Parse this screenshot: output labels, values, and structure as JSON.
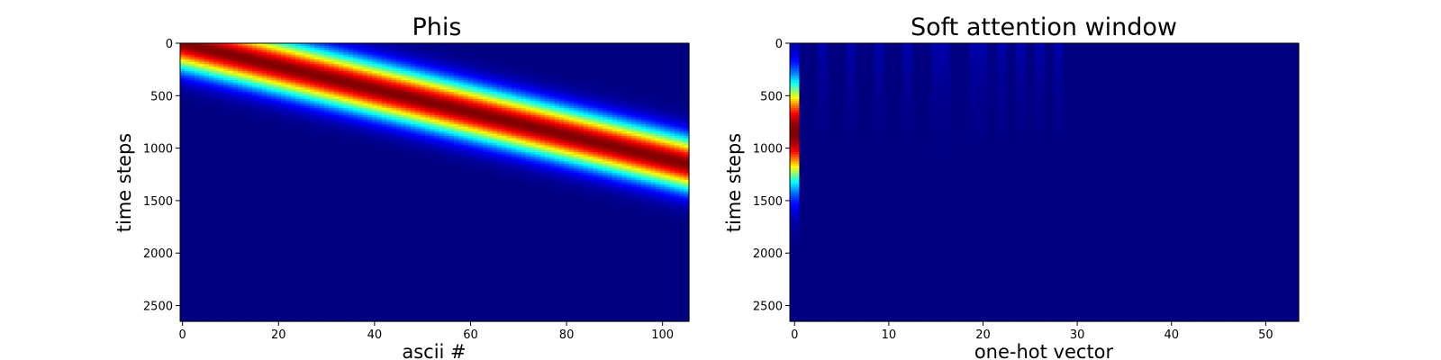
{
  "chart_data": [
    {
      "type": "heatmap",
      "title": "Phis",
      "xlabel": "ascii #",
      "ylabel": "time steps",
      "xlim": [
        -0.5,
        105.5
      ],
      "ylim": [
        2650,
        0
      ],
      "xticks": [
        0,
        20,
        40,
        60,
        80,
        100
      ],
      "yticks": [
        0,
        500,
        1000,
        1500,
        2000,
        2500
      ],
      "colormap": "jet",
      "num_columns": 106,
      "band": {
        "center_start": 0,
        "center_end": 1150,
        "sigma": 170
      },
      "grid": false
    },
    {
      "type": "heatmap",
      "title": "Soft attention window",
      "xlabel": "one-hot vector",
      "ylabel": "time steps",
      "xlim": [
        -0.5,
        53.5
      ],
      "ylim": [
        2650,
        0
      ],
      "xticks": [
        0,
        10,
        20,
        30,
        40,
        50
      ],
      "yticks": [
        0,
        500,
        1000,
        1500,
        2000,
        2500
      ],
      "colormap": "jet",
      "num_columns": 54,
      "hot_column": {
        "index": 0,
        "peak_time": 850,
        "sigma": 340
      },
      "faint_columns": [
        3,
        6,
        9,
        12,
        15,
        16,
        19,
        20,
        22,
        24,
        26,
        28
      ],
      "grid": false
    }
  ]
}
